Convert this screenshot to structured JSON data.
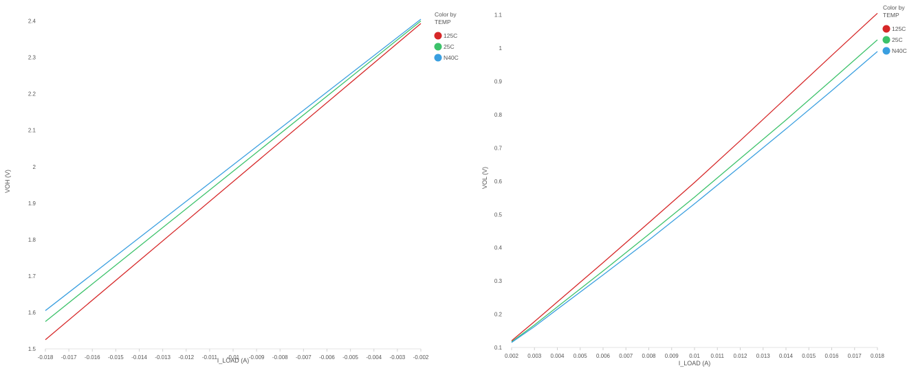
{
  "chart_data": [
    {
      "type": "line",
      "xlabel": "I_LOAD (A)",
      "ylabel": "VOH (V)",
      "xlim": [
        -0.018,
        -0.002
      ],
      "ylim": [
        1.5,
        2.42
      ],
      "x_ticks": [
        "-0.018",
        "-0.017",
        "-0.016",
        "-0.015",
        "-0.014",
        "-0.013",
        "-0.012",
        "-0.011",
        "-0.01",
        "-0.009",
        "-0.008",
        "-0.007",
        "-0.006",
        "-0.005",
        "-0.004",
        "-0.003",
        "-0.002"
      ],
      "y_ticks": [
        "1.5",
        "1.6",
        "1.7",
        "1.8",
        "1.9",
        "2",
        "2.1",
        "2.2",
        "2.3",
        "2.4"
      ],
      "grid": false,
      "legend": {
        "title": "Color by TEMP",
        "position": "top-right"
      },
      "series": [
        {
          "name": "125C",
          "color": "#d62728",
          "x": [
            -0.018,
            -0.002
          ],
          "y": [
            1.525,
            2.393
          ]
        },
        {
          "name": "25C",
          "color": "#3cc26a",
          "x": [
            -0.018,
            -0.002
          ],
          "y": [
            1.575,
            2.4
          ]
        },
        {
          "name": "N40C",
          "color": "#3a9fe0",
          "x": [
            -0.018,
            -0.002
          ],
          "y": [
            1.605,
            2.405
          ]
        }
      ]
    },
    {
      "type": "line",
      "xlabel": "I_LOAD (A)",
      "ylabel": "VOL (V)",
      "xlim": [
        0.002,
        0.018
      ],
      "ylim": [
        0.1,
        1.12
      ],
      "x_ticks": [
        "0.002",
        "0.003",
        "0.004",
        "0.005",
        "0.006",
        "0.007",
        "0.008",
        "0.009",
        "0.01",
        "0.011",
        "0.012",
        "0.013",
        "0.014",
        "0.015",
        "0.016",
        "0.017",
        "0.018"
      ],
      "y_ticks": [
        "0.1",
        "0.2",
        "0.3",
        "0.4",
        "0.5",
        "0.6",
        "0.7",
        "0.8",
        "0.9",
        "1",
        "1.1"
      ],
      "grid": false,
      "legend": {
        "title": "Color by TEMP",
        "position": "top-right"
      },
      "series": [
        {
          "name": "125C",
          "color": "#d62728",
          "x": [
            0.002,
            0.003,
            0.004,
            0.006,
            0.008,
            0.01,
            0.012,
            0.014,
            0.016,
            0.018
          ],
          "y": [
            0.12,
            0.178,
            0.237,
            0.355,
            0.475,
            0.596,
            0.722,
            0.85,
            0.978,
            1.105
          ]
        },
        {
          "name": "25C",
          "color": "#3cc26a",
          "x": [
            0.002,
            0.003,
            0.004,
            0.006,
            0.008,
            0.01,
            0.012,
            0.014,
            0.016,
            0.018
          ],
          "y": [
            0.117,
            0.168,
            0.222,
            0.33,
            0.44,
            0.552,
            0.668,
            0.784,
            0.904,
            1.025
          ]
        },
        {
          "name": "N40C",
          "color": "#3a9fe0",
          "x": [
            0.002,
            0.003,
            0.004,
            0.006,
            0.008,
            0.01,
            0.012,
            0.014,
            0.016,
            0.018
          ],
          "y": [
            0.115,
            0.163,
            0.215,
            0.318,
            0.423,
            0.532,
            0.644,
            0.757,
            0.872,
            0.99
          ]
        }
      ]
    }
  ]
}
